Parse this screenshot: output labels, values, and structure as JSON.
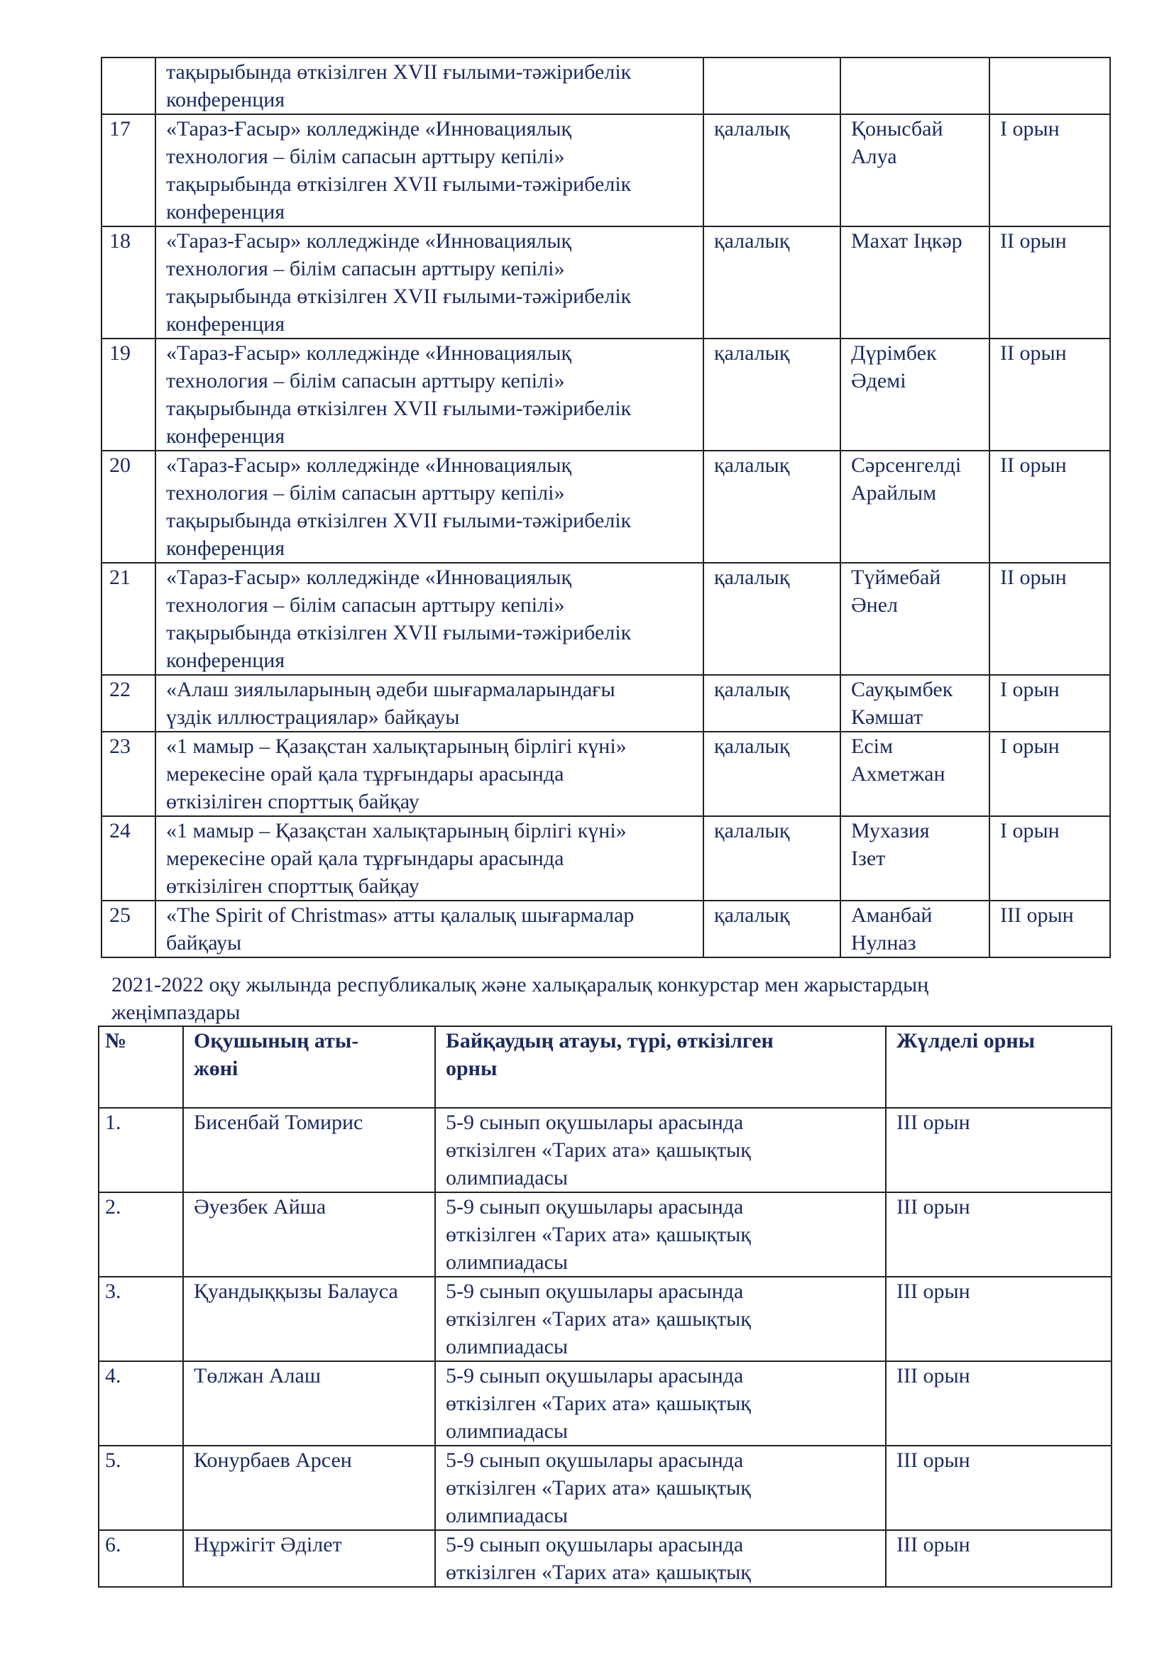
{
  "table1": {
    "rows": [
      {
        "no": "",
        "event": "тақырыбында өткізілген XVII ғылыми-тәжірибелік\nконференция",
        "level": "",
        "name": "",
        "place": ""
      },
      {
        "no": "17",
        "event": "«Тараз-Ғасыр» колледжінде «Инновациялық\nтехнология – білім сапасын арттыру кепілі»\nтақырыбында өткізілген XVII ғылыми-тәжірибелік\nконференция",
        "level": "қалалық",
        "name": "Қонысбай\nАлуа",
        "place": "I орын"
      },
      {
        "no": "18",
        "event": "«Тараз-Ғасыр» колледжінде «Инновациялық\nтехнология – білім сапасын арттыру кепілі»\nтақырыбында өткізілген XVII ғылыми-тәжірибелік\nконференция",
        "level": "қалалық",
        "name": "Махат Іңкәр",
        "place": "II орын"
      },
      {
        "no": "19",
        "event": "«Тараз-Ғасыр» колледжінде «Инновациялық\nтехнология – білім сапасын арттыру кепілі»\nтақырыбында өткізілген XVII ғылыми-тәжірибелік\nконференция",
        "level": "қалалық",
        "name": "Дүрімбек\nӘдемі",
        "place": "II орын"
      },
      {
        "no": "20",
        "event": "«Тараз-Ғасыр» колледжінде «Инновациялық\nтехнология – білім сапасын арттыру кепілі»\nтақырыбында өткізілген XVII ғылыми-тәжірибелік\nконференция",
        "level": "қалалық",
        "name": "Сәрсенгелді\nАрайлым",
        "place": "II орын"
      },
      {
        "no": "21",
        "event": "«Тараз-Ғасыр» колледжінде «Инновациялық\nтехнология – білім сапасын арттыру кепілі»\nтақырыбында өткізілген XVII ғылыми-тәжірибелік\nконференция",
        "level": "қалалық",
        "name": "Түймебай\nӘнел",
        "place": "II орын"
      },
      {
        "no": "22",
        "event": "«Алаш зиялыларының әдеби шығармаларындағы\nүздік иллюстрациялар» байқауы",
        "level": "қалалық",
        "name": "Сауқымбек\nКәмшат",
        "place": "I орын"
      },
      {
        "no": "23",
        "event": "«1 мамыр – Қазақстан халықтарының бірлігі күні»\nмерекесіне орай қала тұрғындары арасында\nөткізіліген спорттық байқау",
        "level": "қалалық",
        "name": "Есім\nАхметжан",
        "place": "I орын"
      },
      {
        "no": "24",
        "event": "«1 мамыр – Қазақстан халықтарының бірлігі күні»\nмерекесіне орай қала тұрғындары арасында\nөткізіліген спорттық байқау",
        "level": "қалалық",
        "name": "Мухазия\nІзет",
        "place": "I орын"
      },
      {
        "no": "25",
        "event": "«The Spirit of Christmas» атты қалалық шығармалар\nбайқауы",
        "level": "қалалық",
        "name": "Аманбай\nНулназ",
        "place": "III орын"
      }
    ]
  },
  "caption": "2021-2022 оқу жылында республикалық және халықаралық конкурстар мен жарыстардың\nжеңімпаздары",
  "table2": {
    "headers": [
      "№",
      "Оқушының аты-\nжөні",
      "Байқаудың атауы, түрі, өткізілген\nорны",
      "Жүлделі орны"
    ],
    "rows": [
      {
        "no": "1.",
        "name": "Бисенбай Томирис",
        "event": "5-9 сынып оқушылары арасында\nөткізілген «Тарих ата» қашықтық\nолимпиадасы",
        "place": "III орын"
      },
      {
        "no": "2.",
        "name": "Әуезбек Айша",
        "event": "5-9 сынып оқушылары арасында\nөткізілген «Тарих ата» қашықтық\nолимпиадасы",
        "place": "III орын"
      },
      {
        "no": "3.",
        "name": "Қуандыққызы Балауса",
        "event": "5-9 сынып оқушылары арасында\nөткізілген «Тарих ата» қашықтық\nолимпиадасы",
        "place": "III орын"
      },
      {
        "no": "4.",
        "name": "Төлжан Алаш",
        "event": "5-9 сынып оқушылары арасында\nөткізілген «Тарих ата» қашықтық\nолимпиадасы",
        "place": "III орын"
      },
      {
        "no": "5.",
        "name": "Конурбаев Арсен",
        "event": "5-9 сынып оқушылары арасында\nөткізілген «Тарих ата» қашықтық\nолимпиадасы",
        "place": "III орын"
      },
      {
        "no": "6.",
        "name": "Нұржігіт Әділет",
        "event": "5-9 сынып оқушылары арасында\nөткізілген «Тарих ата» қашықтық",
        "place": "III орын"
      }
    ]
  }
}
